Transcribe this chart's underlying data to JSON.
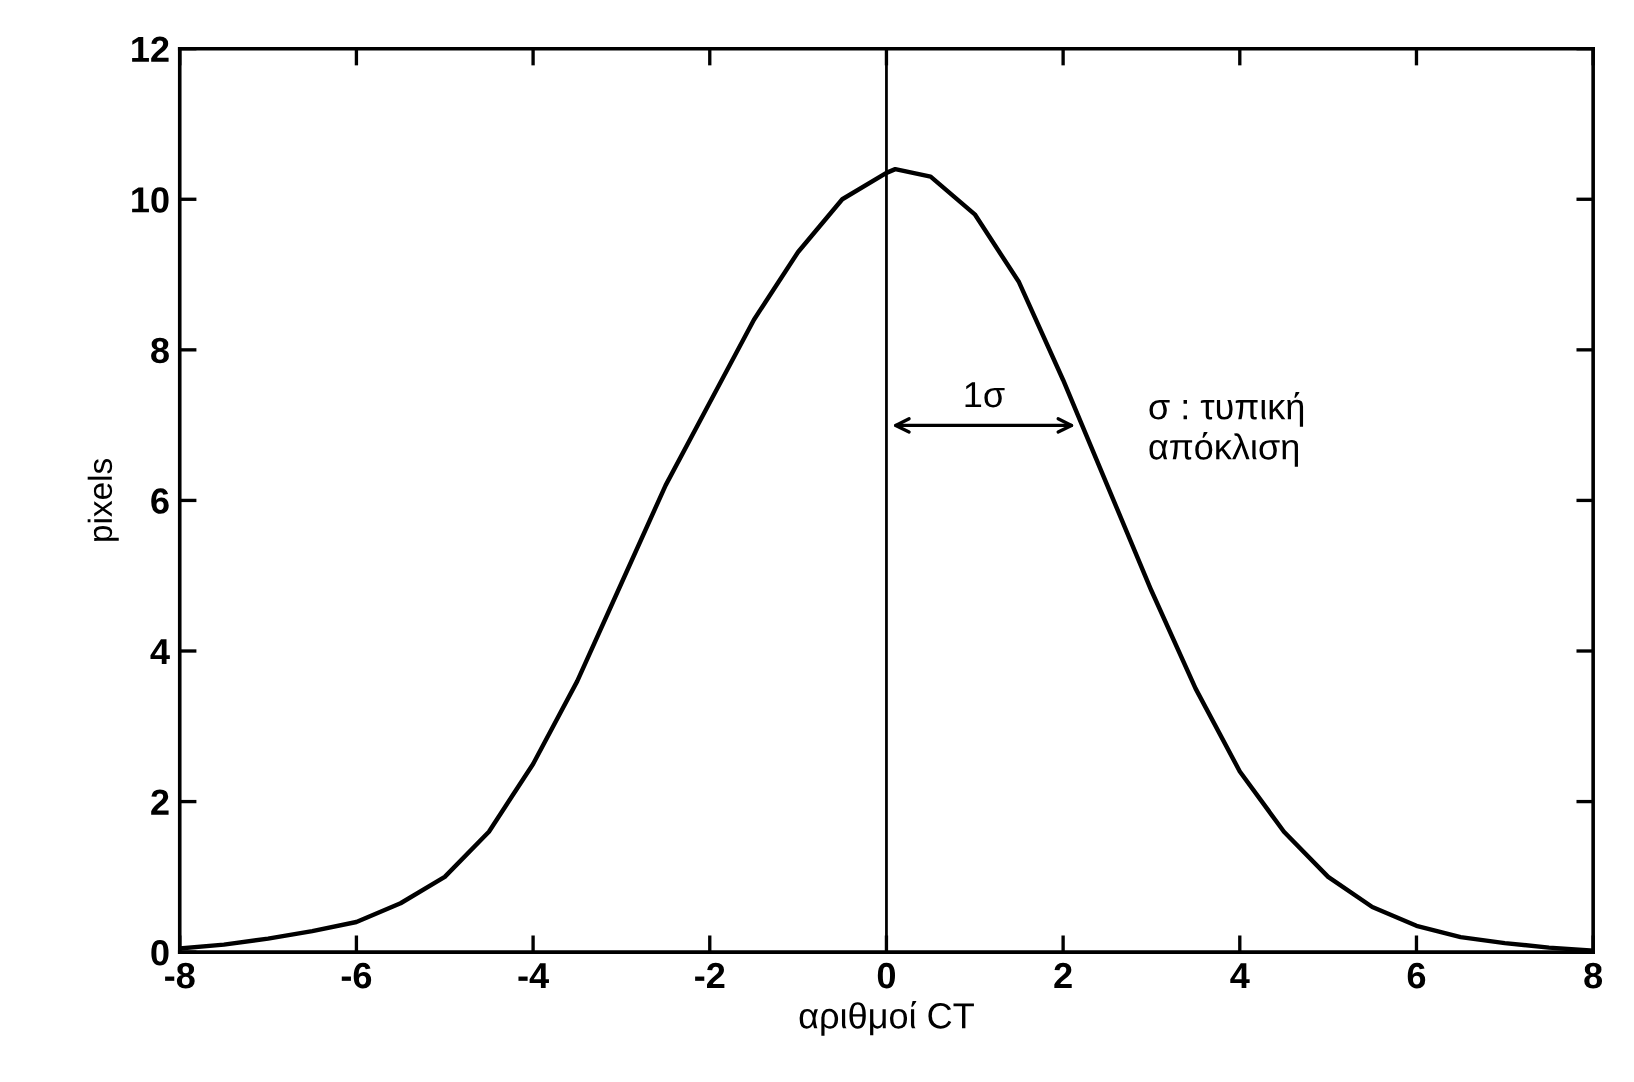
{
  "chart_data": {
    "type": "line",
    "xlabel": "αριθμοί CT",
    "ylabel": "pixels",
    "x": [
      -8,
      -7.5,
      -7,
      -6.5,
      -6,
      -5.5,
      -5,
      -4.5,
      -4,
      -3.5,
      -3,
      -2.5,
      -2,
      -1.5,
      -1,
      -0.5,
      0,
      0.1,
      0.5,
      1,
      1.5,
      2,
      2.5,
      3,
      3.5,
      4,
      4.5,
      5,
      5.5,
      6,
      6.5,
      7,
      7.5,
      8
    ],
    "series": [
      {
        "color": "#000000",
        "values": [
          0.05,
          0.1,
          0.18,
          0.28,
          0.4,
          0.65,
          1.0,
          1.6,
          2.5,
          3.6,
          4.9,
          6.2,
          7.3,
          8.4,
          9.3,
          10.0,
          10.35,
          10.4,
          10.3,
          9.8,
          8.9,
          7.6,
          6.2,
          4.8,
          3.5,
          2.4,
          1.6,
          1.0,
          0.6,
          0.35,
          0.2,
          0.12,
          0.06,
          0.02
        ]
      }
    ],
    "xlim": [
      -8,
      8
    ],
    "xticks": [
      -8,
      -6,
      -4,
      -2,
      0,
      2,
      4,
      6,
      8
    ],
    "ylim": [
      0,
      12
    ],
    "yticks": [
      0,
      2,
      4,
      6,
      8,
      10,
      12
    ],
    "ref_lines": [
      {
        "axis": "x",
        "value": 0,
        "color": "#000000"
      }
    ],
    "annotations": [
      "1σ",
      "σ : τυπική\nαπόκλιση"
    ],
    "grid": false,
    "legend": false,
    "marker": "none",
    "line_style": "solid"
  }
}
